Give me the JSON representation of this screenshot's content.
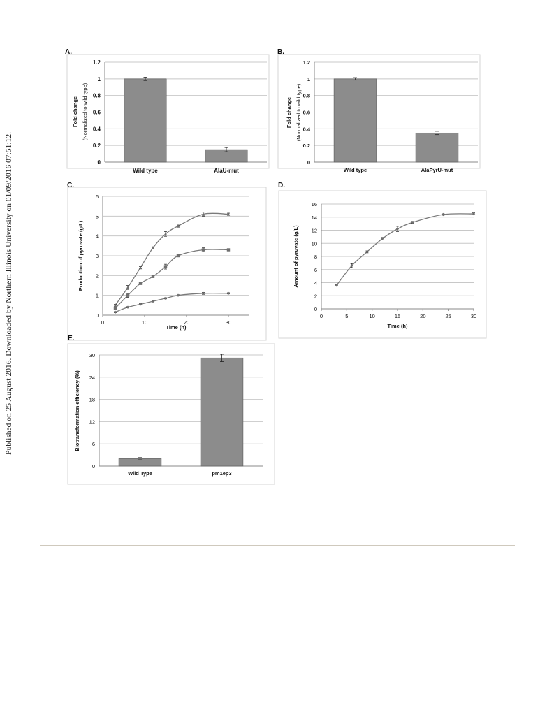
{
  "sidebar_note": "Published on 25 August 2016. Downloaded by Northern Illinois University on 01/09/2016 07:51:12.",
  "chart_data": [
    {
      "panel": "A.",
      "type": "bar",
      "categories": [
        "Wild type",
        "AlaU-mut"
      ],
      "values": [
        1.0,
        0.15
      ],
      "errors": [
        0.02,
        0.025
      ],
      "ylabel": "Fold change",
      "ylabel2": "(Normalized to wild type)",
      "ylim": [
        0,
        1.2
      ],
      "yticks": [
        0,
        0.2,
        0.4,
        0.6,
        0.8,
        1,
        1.2
      ],
      "grid": true
    },
    {
      "panel": "B.",
      "type": "bar",
      "categories": [
        "Wild type",
        "AlaPyrU-mut"
      ],
      "values": [
        1.0,
        0.35
      ],
      "errors": [
        0.015,
        0.02
      ],
      "ylabel": "Fold change",
      "ylabel2": "(Normalized to wild type)",
      "ylim": [
        0,
        1.2
      ],
      "yticks": [
        0,
        0.2,
        0.4,
        0.6,
        0.8,
        1,
        1.2
      ],
      "grid": true
    },
    {
      "panel": "C.",
      "type": "line",
      "xlabel": "Time (h)",
      "ylabel": "Production of pyruvate (g/L)",
      "xlim": [
        0,
        35
      ],
      "ylim": [
        0,
        6
      ],
      "xticks": [
        0,
        10,
        20,
        30
      ],
      "yticks": [
        0,
        1,
        2,
        3,
        4,
        5,
        6
      ],
      "grid": true,
      "series": [
        {
          "marker": "triangle",
          "x": [
            3,
            6,
            9,
            12,
            15,
            18,
            24,
            30
          ],
          "y": [
            0.5,
            1.4,
            2.4,
            3.4,
            4.1,
            4.5,
            5.1,
            5.1
          ],
          "errors": [
            0.05,
            0.1,
            0.05,
            0.05,
            0.12,
            0.05,
            0.1,
            0.05
          ]
        },
        {
          "marker": "square",
          "x": [
            3,
            6,
            9,
            12,
            15,
            18,
            24,
            30
          ],
          "y": [
            0.35,
            1.0,
            1.6,
            1.95,
            2.45,
            3.0,
            3.3,
            3.3
          ],
          "errors": [
            0.05,
            0.1,
            0.05,
            0.05,
            0.12,
            0.05,
            0.1,
            0.05
          ]
        },
        {
          "marker": "diamond",
          "x": [
            3,
            6,
            9,
            12,
            15,
            18,
            24,
            30
          ],
          "y": [
            0.15,
            0.4,
            0.55,
            0.7,
            0.85,
            1.0,
            1.1,
            1.1
          ],
          "errors": [
            0.03,
            0.03,
            0.03,
            0.03,
            0.03,
            0.03,
            0.05,
            0.03
          ]
        }
      ]
    },
    {
      "panel": "D.",
      "type": "line",
      "xlabel": "Time (h)",
      "ylabel": "Amount of pyruvate (g/L)",
      "xlim": [
        0,
        30
      ],
      "ylim": [
        0,
        16
      ],
      "xticks": [
        0,
        5,
        10,
        15,
        20,
        25,
        30
      ],
      "yticks": [
        0,
        2,
        4,
        6,
        8,
        10,
        12,
        14,
        16
      ],
      "grid": true,
      "series": [
        {
          "marker": "diamond",
          "x": [
            3,
            6,
            9,
            12,
            15,
            18,
            24,
            30
          ],
          "y": [
            3.6,
            6.6,
            8.7,
            10.7,
            12.2,
            13.2,
            14.4,
            14.5
          ],
          "errors": [
            0.1,
            0.3,
            0.15,
            0.2,
            0.4,
            0.15,
            0.1,
            0.15
          ]
        }
      ]
    },
    {
      "panel": "E.",
      "type": "bar",
      "categories": [
        "Wild Type",
        "pm1ep3"
      ],
      "values": [
        2.0,
        29.2
      ],
      "errors": [
        0.3,
        1.0
      ],
      "ylabel": "Biotransformation efficiency (%)",
      "ylim": [
        0,
        30
      ],
      "yticks": [
        0,
        6,
        12,
        18,
        24,
        30
      ],
      "grid": true
    }
  ]
}
